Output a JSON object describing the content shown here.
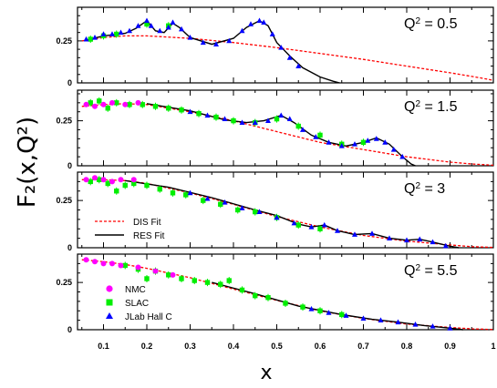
{
  "chart_data": {
    "type": "scatter",
    "xlabel": "x",
    "ylabel": "F₂(x,Q²)",
    "xlim": [
      0.04,
      1.0
    ],
    "x_ticks": [
      "0.1",
      "0.2",
      "0.3",
      "0.4",
      "0.5",
      "0.6",
      "0.7",
      "0.8",
      "0.9",
      "1"
    ],
    "colors": {
      "NMC": "#ff00ff",
      "SLAC": "#00ee00",
      "JLab": "#0000ff",
      "DIS": "#ff0000",
      "RES": "#000000"
    },
    "legend": {
      "lines": [
        {
          "label": "DIS Fit",
          "style": "dashed-red"
        },
        {
          "label": "RES Fit",
          "style": "solid-black"
        }
      ],
      "markers": [
        {
          "label": "NMC",
          "marker": "circle"
        },
        {
          "label": "SLAC",
          "marker": "square"
        },
        {
          "label": "JLab Hall C",
          "marker": "triangle"
        }
      ]
    },
    "panels": [
      {
        "q2_label": "Q",
        "q2_sup": "2",
        "q2_value": " = 0.5",
        "ylim": [
          0,
          0.45
        ],
        "y_ticks": [
          "0",
          "0.25"
        ],
        "dis_fit": [
          [
            0.05,
            0.25
          ],
          [
            0.1,
            0.27
          ],
          [
            0.15,
            0.28
          ],
          [
            0.2,
            0.28
          ],
          [
            0.3,
            0.265
          ],
          [
            0.4,
            0.24
          ],
          [
            0.5,
            0.21
          ],
          [
            0.6,
            0.175
          ],
          [
            0.7,
            0.14
          ],
          [
            0.8,
            0.1
          ],
          [
            0.9,
            0.06
          ],
          [
            0.97,
            0.03
          ],
          [
            1.0,
            0.015
          ]
        ],
        "res_fit": [
          [
            0.06,
            0.255
          ],
          [
            0.1,
            0.28
          ],
          [
            0.15,
            0.295
          ],
          [
            0.175,
            0.325
          ],
          [
            0.2,
            0.37
          ],
          [
            0.22,
            0.31
          ],
          [
            0.24,
            0.3
          ],
          [
            0.26,
            0.355
          ],
          [
            0.275,
            0.33
          ],
          [
            0.3,
            0.27
          ],
          [
            0.35,
            0.23
          ],
          [
            0.4,
            0.265
          ],
          [
            0.43,
            0.33
          ],
          [
            0.46,
            0.37
          ],
          [
            0.48,
            0.34
          ],
          [
            0.5,
            0.24
          ],
          [
            0.53,
            0.16
          ],
          [
            0.56,
            0.09
          ],
          [
            0.6,
            0.035
          ],
          [
            0.63,
            0.01
          ],
          [
            0.645,
            0.0
          ]
        ],
        "nmc": [],
        "slac": [
          [
            0.07,
            0.26
          ],
          [
            0.1,
            0.28
          ],
          [
            0.13,
            0.29
          ],
          [
            0.2,
            0.35
          ],
          [
            0.25,
            0.34
          ]
        ],
        "jlab": [
          [
            0.06,
            0.26
          ],
          [
            0.08,
            0.27
          ],
          [
            0.1,
            0.29
          ],
          [
            0.12,
            0.29
          ],
          [
            0.14,
            0.3
          ],
          [
            0.16,
            0.31
          ],
          [
            0.18,
            0.34
          ],
          [
            0.2,
            0.37
          ],
          [
            0.21,
            0.34
          ],
          [
            0.23,
            0.31
          ],
          [
            0.25,
            0.33
          ],
          [
            0.26,
            0.36
          ],
          [
            0.28,
            0.32
          ],
          [
            0.3,
            0.27
          ],
          [
            0.33,
            0.24
          ],
          [
            0.36,
            0.23
          ],
          [
            0.39,
            0.25
          ],
          [
            0.42,
            0.31
          ],
          [
            0.44,
            0.35
          ],
          [
            0.46,
            0.37
          ],
          [
            0.47,
            0.36
          ],
          [
            0.49,
            0.29
          ],
          [
            0.51,
            0.21
          ],
          [
            0.53,
            0.15
          ],
          [
            0.55,
            0.1
          ]
        ]
      },
      {
        "q2_label": "Q",
        "q2_sup": "2",
        "q2_value": " = 1.5",
        "ylim": [
          0,
          0.42
        ],
        "y_ticks": [
          "0",
          "0.25"
        ],
        "dis_fit": [
          [
            0.05,
            0.33
          ],
          [
            0.1,
            0.34
          ],
          [
            0.15,
            0.345
          ],
          [
            0.2,
            0.34
          ],
          [
            0.3,
            0.3
          ],
          [
            0.4,
            0.25
          ],
          [
            0.5,
            0.19
          ],
          [
            0.6,
            0.13
          ],
          [
            0.7,
            0.09
          ],
          [
            0.8,
            0.05
          ],
          [
            0.9,
            0.02
          ],
          [
            0.95,
            0.01
          ],
          [
            1.0,
            0.003
          ]
        ],
        "res_fit": [
          [
            0.2,
            0.345
          ],
          [
            0.3,
            0.305
          ],
          [
            0.38,
            0.255
          ],
          [
            0.43,
            0.24
          ],
          [
            0.47,
            0.25
          ],
          [
            0.51,
            0.28
          ],
          [
            0.54,
            0.24
          ],
          [
            0.58,
            0.17
          ],
          [
            0.62,
            0.13
          ],
          [
            0.66,
            0.11
          ],
          [
            0.7,
            0.13
          ],
          [
            0.73,
            0.155
          ],
          [
            0.76,
            0.12
          ],
          [
            0.79,
            0.05
          ],
          [
            0.81,
            0.01
          ],
          [
            0.82,
            0.0
          ]
        ],
        "nmc": [
          [
            0.06,
            0.34
          ],
          [
            0.08,
            0.33
          ],
          [
            0.1,
            0.34
          ],
          [
            0.12,
            0.35
          ],
          [
            0.15,
            0.34
          ],
          [
            0.18,
            0.35
          ]
        ],
        "slac": [
          [
            0.07,
            0.35
          ],
          [
            0.09,
            0.36
          ],
          [
            0.11,
            0.32
          ],
          [
            0.13,
            0.35
          ],
          [
            0.16,
            0.34
          ],
          [
            0.19,
            0.34
          ],
          [
            0.22,
            0.33
          ],
          [
            0.25,
            0.32
          ],
          [
            0.28,
            0.31
          ],
          [
            0.32,
            0.29
          ],
          [
            0.36,
            0.27
          ],
          [
            0.4,
            0.25
          ],
          [
            0.45,
            0.24
          ],
          [
            0.5,
            0.26
          ],
          [
            0.55,
            0.22
          ],
          [
            0.6,
            0.17
          ],
          [
            0.65,
            0.12
          ],
          [
            0.7,
            0.13
          ]
        ],
        "jlab": [
          [
            0.3,
            0.3
          ],
          [
            0.34,
            0.28
          ],
          [
            0.38,
            0.26
          ],
          [
            0.42,
            0.24
          ],
          [
            0.45,
            0.24
          ],
          [
            0.48,
            0.25
          ],
          [
            0.51,
            0.28
          ],
          [
            0.53,
            0.26
          ],
          [
            0.56,
            0.2
          ],
          [
            0.59,
            0.16
          ],
          [
            0.62,
            0.13
          ],
          [
            0.65,
            0.11
          ],
          [
            0.68,
            0.12
          ],
          [
            0.71,
            0.14
          ],
          [
            0.73,
            0.15
          ],
          [
            0.75,
            0.13
          ],
          [
            0.77,
            0.09
          ],
          [
            0.79,
            0.05
          ]
        ]
      },
      {
        "q2_label": "Q",
        "q2_sup": "2",
        "q2_value": " = 3",
        "ylim": [
          0,
          0.4
        ],
        "y_ticks": [
          "0",
          "0.25"
        ],
        "dis_fit": [
          [
            0.05,
            0.36
          ],
          [
            0.1,
            0.36
          ],
          [
            0.15,
            0.355
          ],
          [
            0.2,
            0.34
          ],
          [
            0.3,
            0.29
          ],
          [
            0.4,
            0.23
          ],
          [
            0.5,
            0.165
          ],
          [
            0.6,
            0.11
          ],
          [
            0.7,
            0.065
          ],
          [
            0.8,
            0.035
          ],
          [
            0.9,
            0.015
          ],
          [
            0.95,
            0.006
          ],
          [
            1.0,
            0.002
          ]
        ],
        "res_fit": [
          [
            0.15,
            0.355
          ],
          [
            0.25,
            0.32
          ],
          [
            0.35,
            0.265
          ],
          [
            0.45,
            0.2
          ],
          [
            0.5,
            0.17
          ],
          [
            0.55,
            0.125
          ],
          [
            0.58,
            0.11
          ],
          [
            0.61,
            0.12
          ],
          [
            0.64,
            0.09
          ],
          [
            0.68,
            0.07
          ],
          [
            0.72,
            0.075
          ],
          [
            0.76,
            0.05
          ],
          [
            0.8,
            0.04
          ],
          [
            0.83,
            0.045
          ],
          [
            0.86,
            0.03
          ],
          [
            0.9,
            0.008
          ],
          [
            0.92,
            0.0
          ]
        ],
        "nmc": [
          [
            0.06,
            0.36
          ],
          [
            0.08,
            0.37
          ],
          [
            0.1,
            0.36
          ],
          [
            0.12,
            0.35
          ],
          [
            0.14,
            0.36
          ],
          [
            0.17,
            0.36
          ]
        ],
        "slac": [
          [
            0.07,
            0.35
          ],
          [
            0.09,
            0.36
          ],
          [
            0.11,
            0.34
          ],
          [
            0.13,
            0.3
          ],
          [
            0.15,
            0.33
          ],
          [
            0.17,
            0.34
          ],
          [
            0.2,
            0.33
          ],
          [
            0.23,
            0.31
          ],
          [
            0.26,
            0.29
          ],
          [
            0.29,
            0.28
          ],
          [
            0.33,
            0.25
          ],
          [
            0.37,
            0.23
          ],
          [
            0.41,
            0.2
          ],
          [
            0.45,
            0.19
          ],
          [
            0.5,
            0.16
          ],
          [
            0.55,
            0.12
          ],
          [
            0.6,
            0.1
          ]
        ],
        "jlab": [
          [
            0.3,
            0.29
          ],
          [
            0.34,
            0.26
          ],
          [
            0.38,
            0.24
          ],
          [
            0.42,
            0.21
          ],
          [
            0.46,
            0.19
          ],
          [
            0.5,
            0.16
          ],
          [
            0.54,
            0.13
          ],
          [
            0.58,
            0.11
          ],
          [
            0.61,
            0.12
          ],
          [
            0.64,
            0.09
          ],
          [
            0.68,
            0.07
          ],
          [
            0.72,
            0.075
          ],
          [
            0.76,
            0.05
          ],
          [
            0.8,
            0.04
          ],
          [
            0.83,
            0.045
          ],
          [
            0.86,
            0.03
          ],
          [
            0.89,
            0.01
          ]
        ]
      },
      {
        "q2_label": "Q",
        "q2_sup": "2",
        "q2_value": " = 5.5",
        "ylim": [
          0,
          0.4
        ],
        "y_ticks": [
          "0",
          "0.25"
        ],
        "dis_fit": [
          [
            0.05,
            0.37
          ],
          [
            0.1,
            0.36
          ],
          [
            0.15,
            0.345
          ],
          [
            0.2,
            0.325
          ],
          [
            0.3,
            0.275
          ],
          [
            0.4,
            0.215
          ],
          [
            0.5,
            0.155
          ],
          [
            0.6,
            0.1
          ],
          [
            0.7,
            0.06
          ],
          [
            0.8,
            0.03
          ],
          [
            0.9,
            0.012
          ],
          [
            0.95,
            0.005
          ],
          [
            1.0,
            0.001
          ]
        ],
        "res_fit": [
          [
            0.35,
            0.25
          ],
          [
            0.45,
            0.19
          ],
          [
            0.55,
            0.125
          ],
          [
            0.65,
            0.08
          ],
          [
            0.72,
            0.055
          ],
          [
            0.78,
            0.04
          ],
          [
            0.84,
            0.022
          ],
          [
            0.9,
            0.008
          ],
          [
            0.93,
            0.0
          ]
        ],
        "nmc": [
          [
            0.06,
            0.37
          ],
          [
            0.08,
            0.36
          ],
          [
            0.1,
            0.35
          ],
          [
            0.12,
            0.35
          ],
          [
            0.14,
            0.34
          ],
          [
            0.18,
            0.33
          ],
          [
            0.22,
            0.31
          ],
          [
            0.26,
            0.29
          ]
        ],
        "slac": [
          [
            0.15,
            0.34
          ],
          [
            0.18,
            0.32
          ],
          [
            0.2,
            0.27
          ],
          [
            0.22,
            0.31
          ],
          [
            0.25,
            0.29
          ],
          [
            0.28,
            0.27
          ],
          [
            0.31,
            0.26
          ],
          [
            0.34,
            0.25
          ],
          [
            0.37,
            0.24
          ],
          [
            0.39,
            0.26
          ],
          [
            0.42,
            0.21
          ],
          [
            0.45,
            0.18
          ],
          [
            0.48,
            0.17
          ],
          [
            0.52,
            0.14
          ],
          [
            0.56,
            0.12
          ],
          [
            0.6,
            0.1
          ],
          [
            0.65,
            0.08
          ]
        ],
        "jlab": [
          [
            0.58,
            0.11
          ],
          [
            0.62,
            0.09
          ],
          [
            0.66,
            0.075
          ],
          [
            0.7,
            0.06
          ],
          [
            0.74,
            0.05
          ],
          [
            0.78,
            0.04
          ],
          [
            0.82,
            0.028
          ],
          [
            0.86,
            0.018
          ],
          [
            0.9,
            0.008
          ]
        ]
      }
    ]
  }
}
